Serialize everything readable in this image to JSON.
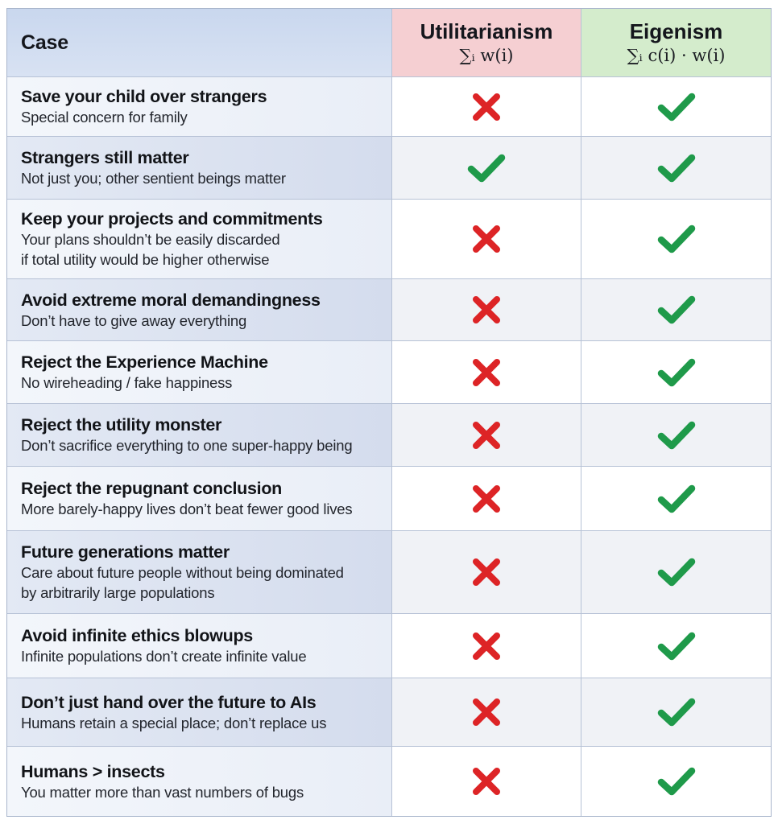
{
  "header": {
    "case_label": "Case",
    "utilitarianism": {
      "name": "Utilitarianism",
      "formula": "∑ᵢ w(i)",
      "color": "#f5cfd2"
    },
    "eigenism": {
      "name": "Eigenism",
      "formula": "∑ᵢ c(i) · w(i)",
      "color": "#d4eccc"
    }
  },
  "colors": {
    "check": "#1f9a4a",
    "cross": "#dd2426"
  },
  "rows": [
    {
      "title": "Save your child over strangers",
      "subtitle": "Special concern for family",
      "utilitarianism": "cross",
      "eigenism": "check"
    },
    {
      "title": "Strangers still matter",
      "subtitle": "Not just you; other sentient beings matter",
      "utilitarianism": "check",
      "eigenism": "check"
    },
    {
      "title": "Keep your projects and commitments",
      "subtitle": "Your plans shouldn’t be easily discarded\nif total utility would be higher otherwise",
      "utilitarianism": "cross",
      "eigenism": "check"
    },
    {
      "title": "Avoid extreme moral demandingness",
      "subtitle": "Don’t have to give away everything",
      "utilitarianism": "cross",
      "eigenism": "check"
    },
    {
      "title": "Reject the Experience Machine",
      "subtitle": "No wireheading / fake happiness",
      "utilitarianism": "cross",
      "eigenism": "check"
    },
    {
      "title": "Reject the utility monster",
      "subtitle": "Don’t sacrifice everything to one super-happy being",
      "utilitarianism": "cross",
      "eigenism": "check"
    },
    {
      "title": "Reject the repugnant conclusion",
      "subtitle": "More barely-happy lives don’t beat fewer good lives",
      "utilitarianism": "cross",
      "eigenism": "check"
    },
    {
      "title": "Future generations matter",
      "subtitle": "Care about future people without being dominated\nby arbitrarily large populations",
      "utilitarianism": "cross",
      "eigenism": "check"
    },
    {
      "title": "Avoid infinite ethics blowups",
      "subtitle": "Infinite populations don’t create infinite value",
      "utilitarianism": "cross",
      "eigenism": "check"
    },
    {
      "title": "Don’t just hand over the future to AIs",
      "subtitle": "Humans retain a special place; don’t replace us",
      "utilitarianism": "cross",
      "eigenism": "check"
    },
    {
      "title": "Humans > insects",
      "subtitle": "You matter more than vast numbers of bugs",
      "utilitarianism": "cross",
      "eigenism": "check"
    }
  ]
}
